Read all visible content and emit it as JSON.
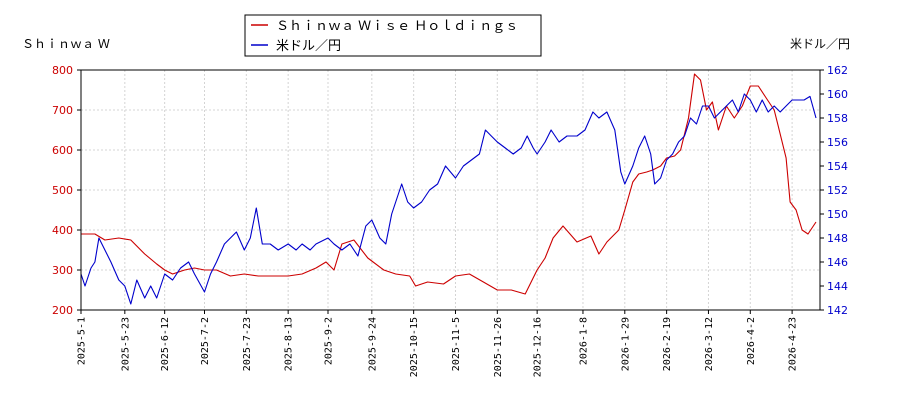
{
  "chart_data": {
    "type": "line",
    "left_axis_label": "Ｓｈｉｎｗａ Ｗ",
    "right_axis_label": "米ドル／円",
    "left_ylim": [
      200,
      800
    ],
    "left_ticks": [
      "200",
      "300",
      "400",
      "500",
      "600",
      "700",
      "800"
    ],
    "right_ylim": [
      142,
      162
    ],
    "right_ticks": [
      "142",
      "144",
      "146",
      "148",
      "150",
      "152",
      "154",
      "156",
      "158",
      "160",
      "162"
    ],
    "x_start": "2025-05-01",
    "x_end": "2026-05-07",
    "x_ticks": [
      "2025-5-1",
      "2025-5-23",
      "2025-6-12",
      "2025-7-2",
      "2025-7-23",
      "2025-8-13",
      "2025-9-2",
      "2025-9-24",
      "2025-10-15",
      "2025-11-5",
      "2025-11-26",
      "2025-12-16",
      "2026-1-8",
      "2026-1-29",
      "2026-2-19",
      "2026-3-12",
      "2026-4-2",
      "2026-4-23"
    ],
    "grid": true,
    "legend_position": "top-center",
    "series": [
      {
        "name": "Ｓｈｉｎｗａ Ｗｉｓｅ Ｈｏｌｄｉｎｇｓ",
        "axis": "left",
        "color": "#cc0000",
        "points": [
          [
            "2025-05-01",
            390
          ],
          [
            "2025-05-08",
            390
          ],
          [
            "2025-05-13",
            375
          ],
          [
            "2025-05-20",
            380
          ],
          [
            "2025-05-26",
            375
          ],
          [
            "2025-06-02",
            340
          ],
          [
            "2025-06-08",
            315
          ],
          [
            "2025-06-12",
            300
          ],
          [
            "2025-06-16",
            290
          ],
          [
            "2025-06-22",
            300
          ],
          [
            "2025-06-27",
            305
          ],
          [
            "2025-07-02",
            300
          ],
          [
            "2025-07-08",
            300
          ],
          [
            "2025-07-15",
            285
          ],
          [
            "2025-07-22",
            290
          ],
          [
            "2025-07-29",
            285
          ],
          [
            "2025-08-05",
            285
          ],
          [
            "2025-08-13",
            285
          ],
          [
            "2025-08-20",
            290
          ],
          [
            "2025-08-27",
            305
          ],
          [
            "2025-09-01",
            320
          ],
          [
            "2025-09-05",
            300
          ],
          [
            "2025-09-09",
            365
          ],
          [
            "2025-09-15",
            375
          ],
          [
            "2025-09-22",
            330
          ],
          [
            "2025-09-30",
            300
          ],
          [
            "2025-10-06",
            290
          ],
          [
            "2025-10-13",
            285
          ],
          [
            "2025-10-16",
            260
          ],
          [
            "2025-10-22",
            270
          ],
          [
            "2025-10-30",
            265
          ],
          [
            "2025-11-05",
            285
          ],
          [
            "2025-11-12",
            290
          ],
          [
            "2025-11-19",
            270
          ],
          [
            "2025-11-26",
            250
          ],
          [
            "2025-12-03",
            250
          ],
          [
            "2025-12-10",
            240
          ],
          [
            "2025-12-16",
            300
          ],
          [
            "2025-12-20",
            330
          ],
          [
            "2025-12-24",
            380
          ],
          [
            "2025-12-29",
            410
          ],
          [
            "2026-01-05",
            370
          ],
          [
            "2026-01-12",
            385
          ],
          [
            "2026-01-16",
            340
          ],
          [
            "2026-01-20",
            370
          ],
          [
            "2026-01-26",
            400
          ],
          [
            "2026-01-29",
            450
          ],
          [
            "2026-02-02",
            520
          ],
          [
            "2026-02-05",
            540
          ],
          [
            "2026-02-09",
            545
          ],
          [
            "2026-02-12",
            550
          ],
          [
            "2026-02-16",
            560
          ],
          [
            "2026-02-19",
            580
          ],
          [
            "2026-02-23",
            585
          ],
          [
            "2026-02-26",
            600
          ],
          [
            "2026-03-02",
            680
          ],
          [
            "2026-03-05",
            790
          ],
          [
            "2026-03-08",
            775
          ],
          [
            "2026-03-11",
            700
          ],
          [
            "2026-03-14",
            720
          ],
          [
            "2026-03-17",
            650
          ],
          [
            "2026-03-21",
            710
          ],
          [
            "2026-03-25",
            680
          ],
          [
            "2026-03-29",
            710
          ],
          [
            "2026-04-02",
            760
          ],
          [
            "2026-04-06",
            760
          ],
          [
            "2026-04-10",
            730
          ],
          [
            "2026-04-14",
            700
          ],
          [
            "2026-04-16",
            660
          ],
          [
            "2026-04-20",
            580
          ],
          [
            "2026-04-22",
            470
          ],
          [
            "2026-04-25",
            450
          ],
          [
            "2026-04-28",
            400
          ],
          [
            "2026-05-01",
            390
          ],
          [
            "2026-05-05",
            420
          ]
        ]
      },
      {
        "name": "米ドル／円",
        "axis": "right",
        "color": "#0000cc",
        "points": [
          [
            "2025-05-01",
            145.0
          ],
          [
            "2025-05-03",
            144.0
          ],
          [
            "2025-05-06",
            145.5
          ],
          [
            "2025-05-08",
            146.0
          ],
          [
            "2025-05-10",
            148.0
          ],
          [
            "2025-05-13",
            147.0
          ],
          [
            "2025-05-16",
            146.0
          ],
          [
            "2025-05-20",
            144.5
          ],
          [
            "2025-05-23",
            144.0
          ],
          [
            "2025-05-26",
            142.5
          ],
          [
            "2025-05-29",
            144.5
          ],
          [
            "2025-06-02",
            143.0
          ],
          [
            "2025-06-05",
            144.0
          ],
          [
            "2025-06-08",
            143.0
          ],
          [
            "2025-06-12",
            145.0
          ],
          [
            "2025-06-16",
            144.5
          ],
          [
            "2025-06-20",
            145.5
          ],
          [
            "2025-06-24",
            146.0
          ],
          [
            "2025-06-27",
            145.0
          ],
          [
            "2025-07-02",
            143.5
          ],
          [
            "2025-07-05",
            145.0
          ],
          [
            "2025-07-08",
            146.0
          ],
          [
            "2025-07-12",
            147.5
          ],
          [
            "2025-07-15",
            148.0
          ],
          [
            "2025-07-18",
            148.5
          ],
          [
            "2025-07-22",
            147.0
          ],
          [
            "2025-07-25",
            148.0
          ],
          [
            "2025-07-28",
            150.5
          ],
          [
            "2025-07-31",
            147.5
          ],
          [
            "2025-08-04",
            147.5
          ],
          [
            "2025-08-08",
            147.0
          ],
          [
            "2025-08-13",
            147.5
          ],
          [
            "2025-08-17",
            147.0
          ],
          [
            "2025-08-20",
            147.5
          ],
          [
            "2025-08-24",
            147.0
          ],
          [
            "2025-08-27",
            147.5
          ],
          [
            "2025-09-02",
            148.0
          ],
          [
            "2025-09-05",
            147.5
          ],
          [
            "2025-09-09",
            147.0
          ],
          [
            "2025-09-13",
            147.5
          ],
          [
            "2025-09-17",
            146.5
          ],
          [
            "2025-09-21",
            149.0
          ],
          [
            "2025-09-24",
            149.5
          ],
          [
            "2025-09-28",
            148.0
          ],
          [
            "2025-10-01",
            147.5
          ],
          [
            "2025-10-04",
            150.0
          ],
          [
            "2025-10-07",
            151.5
          ],
          [
            "2025-10-09",
            152.5
          ],
          [
            "2025-10-12",
            151.0
          ],
          [
            "2025-10-15",
            150.5
          ],
          [
            "2025-10-19",
            151.0
          ],
          [
            "2025-10-23",
            152.0
          ],
          [
            "2025-10-27",
            152.5
          ],
          [
            "2025-10-31",
            154.0
          ],
          [
            "2025-11-05",
            153.0
          ],
          [
            "2025-11-09",
            154.0
          ],
          [
            "2025-11-13",
            154.5
          ],
          [
            "2025-11-17",
            155.0
          ],
          [
            "2025-11-20",
            157.0
          ],
          [
            "2025-11-23",
            156.5
          ],
          [
            "2025-11-26",
            156.0
          ],
          [
            "2025-11-30",
            155.5
          ],
          [
            "2025-12-04",
            155.0
          ],
          [
            "2025-12-08",
            155.5
          ],
          [
            "2025-12-11",
            156.5
          ],
          [
            "2025-12-14",
            155.5
          ],
          [
            "2025-12-16",
            155.0
          ],
          [
            "2025-12-20",
            156.0
          ],
          [
            "2025-12-23",
            157.0
          ],
          [
            "2025-12-27",
            156.0
          ],
          [
            "2025-12-31",
            156.5
          ],
          [
            "2026-01-05",
            156.5
          ],
          [
            "2026-01-09",
            157.0
          ],
          [
            "2026-01-13",
            158.5
          ],
          [
            "2026-01-16",
            158.0
          ],
          [
            "2026-01-20",
            158.5
          ],
          [
            "2026-01-24",
            157.0
          ],
          [
            "2026-01-27",
            153.5
          ],
          [
            "2026-01-29",
            152.5
          ],
          [
            "2026-02-02",
            154.0
          ],
          [
            "2026-02-05",
            155.5
          ],
          [
            "2026-02-08",
            156.5
          ],
          [
            "2026-02-11",
            155.0
          ],
          [
            "2026-02-13",
            152.5
          ],
          [
            "2026-02-16",
            153.0
          ],
          [
            "2026-02-19",
            154.5
          ],
          [
            "2026-02-22",
            155.0
          ],
          [
            "2026-02-25",
            156.0
          ],
          [
            "2026-02-28",
            156.5
          ],
          [
            "2026-03-03",
            158.0
          ],
          [
            "2026-03-06",
            157.5
          ],
          [
            "2026-03-09",
            159.0
          ],
          [
            "2026-03-12",
            159.0
          ],
          [
            "2026-03-15",
            158.0
          ],
          [
            "2026-03-18",
            158.5
          ],
          [
            "2026-03-21",
            159.0
          ],
          [
            "2026-03-24",
            159.5
          ],
          [
            "2026-03-27",
            158.5
          ],
          [
            "2026-03-30",
            160.0
          ],
          [
            "2026-04-02",
            159.5
          ],
          [
            "2026-04-05",
            158.5
          ],
          [
            "2026-04-08",
            159.5
          ],
          [
            "2026-04-11",
            158.5
          ],
          [
            "2026-04-14",
            159.0
          ],
          [
            "2026-04-17",
            158.5
          ],
          [
            "2026-04-20",
            159.0
          ],
          [
            "2026-04-23",
            159.5
          ],
          [
            "2026-04-26",
            159.5
          ],
          [
            "2026-04-29",
            159.5
          ],
          [
            "2026-05-02",
            159.8
          ],
          [
            "2026-05-05",
            158.0
          ]
        ]
      }
    ]
  }
}
